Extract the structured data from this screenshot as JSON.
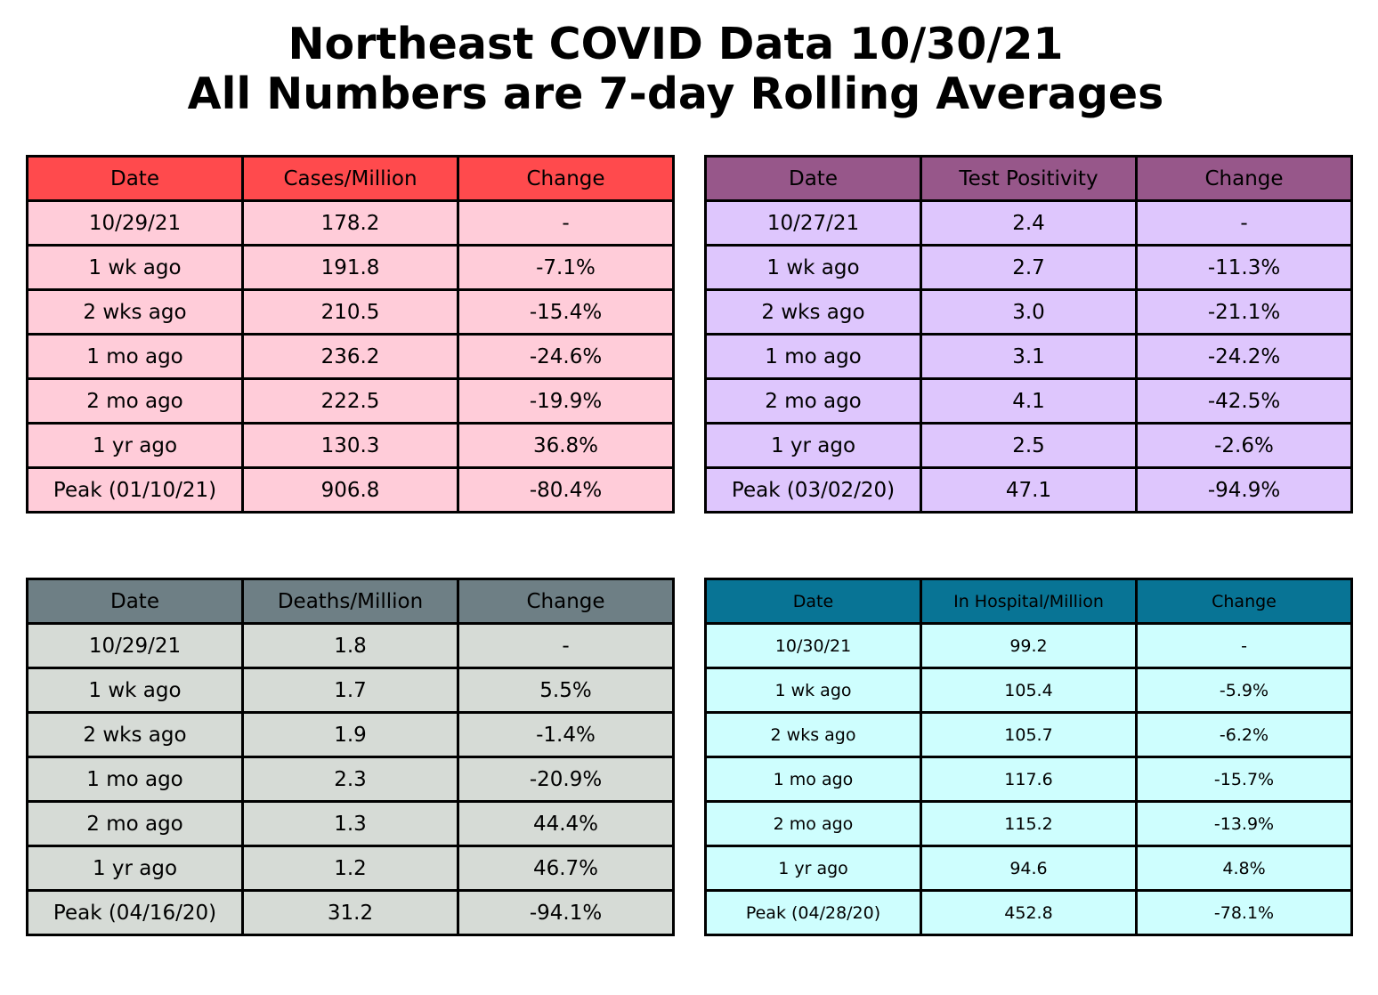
{
  "title": {
    "line1": "Northeast COVID Data 10/30/21",
    "line2": "All Numbers are 7-day Rolling Averages"
  },
  "chart_data": [
    {
      "type": "table",
      "header_color": "#ff4a4d",
      "cell_color": "#ffccd9",
      "columns": [
        "Date",
        "Cases/Million",
        "Change"
      ],
      "rows": [
        [
          "10/29/21",
          "178.2",
          "-"
        ],
        [
          "1 wk ago",
          "191.8",
          "-7.1%"
        ],
        [
          "2 wks ago",
          "210.5",
          "-15.4%"
        ],
        [
          "1 mo ago",
          "236.2",
          "-24.6%"
        ],
        [
          "2 mo ago",
          "222.5",
          "-19.9%"
        ],
        [
          "1 yr ago",
          "130.3",
          "36.8%"
        ],
        [
          "Peak (01/10/21)",
          "906.8",
          "-80.4%"
        ]
      ]
    },
    {
      "type": "table",
      "header_color": "#97578a",
      "cell_color": "#dec6fd",
      "columns": [
        "Date",
        "Test Positivity",
        "Change"
      ],
      "rows": [
        [
          "10/27/21",
          "2.4",
          "-"
        ],
        [
          "1 wk ago",
          "2.7",
          "-11.3%"
        ],
        [
          "2 wks ago",
          "3.0",
          "-21.1%"
        ],
        [
          "1 mo ago",
          "3.1",
          "-24.2%"
        ],
        [
          "2 mo ago",
          "4.1",
          "-42.5%"
        ],
        [
          "1 yr ago",
          "2.5",
          "-2.6%"
        ],
        [
          "Peak (03/02/20)",
          "47.1",
          "-94.9%"
        ]
      ]
    },
    {
      "type": "table",
      "header_color": "#6e7f85",
      "cell_color": "#d6dbd6",
      "columns": [
        "Date",
        "Deaths/Million",
        "Change"
      ],
      "rows": [
        [
          "10/29/21",
          "1.8",
          "-"
        ],
        [
          "1 wk ago",
          "1.7",
          "5.5%"
        ],
        [
          "2 wks ago",
          "1.9",
          "-1.4%"
        ],
        [
          "1 mo ago",
          "2.3",
          "-20.9%"
        ],
        [
          "2 mo ago",
          "1.3",
          "44.4%"
        ],
        [
          "1 yr ago",
          "1.2",
          "46.7%"
        ],
        [
          "Peak (04/16/20)",
          "31.2",
          "-94.1%"
        ]
      ]
    },
    {
      "type": "table",
      "header_color": "#087495",
      "cell_color": "#cefefe",
      "columns": [
        "Date",
        "In Hospital/Million",
        "Change"
      ],
      "rows": [
        [
          "10/30/21",
          "99.2",
          "-"
        ],
        [
          "1 wk ago",
          "105.4",
          "-5.9%"
        ],
        [
          "2 wks ago",
          "105.7",
          "-6.2%"
        ],
        [
          "1 mo ago",
          "117.6",
          "-15.7%"
        ],
        [
          "2 mo ago",
          "115.2",
          "-13.9%"
        ],
        [
          "1 yr ago",
          "94.6",
          "4.8%"
        ],
        [
          "Peak (04/28/20)",
          "452.8",
          "-78.1%"
        ]
      ]
    }
  ]
}
